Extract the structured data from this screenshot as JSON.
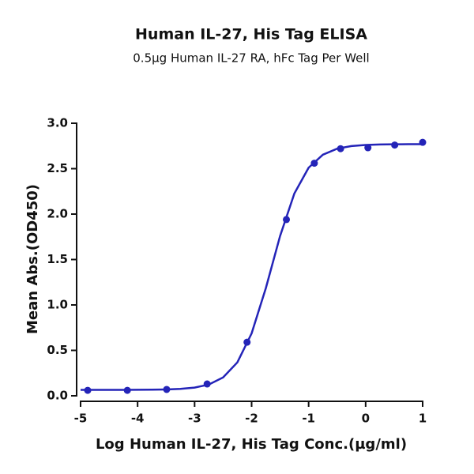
{
  "chart_data": {
    "type": "scatter",
    "title": "Human IL-27, His Tag ELISA",
    "subtitle": "0.5µg Human IL-27 RA, hFc Tag Per Well",
    "x_label": "Log Human IL-27, His Tag Conc.(µg/ml)",
    "y_label": "Mean Abs.(OD450)",
    "xlim": [
      -5,
      1
    ],
    "ylim": [
      0,
      3
    ],
    "xticks": [
      -5,
      -4,
      -3,
      -2,
      -1,
      0,
      1
    ],
    "yticks": [
      {
        "value": 0,
        "label": "0.0"
      },
      {
        "value": 0.5,
        "label": "0.5"
      },
      {
        "value": 1,
        "label": "1.0"
      },
      {
        "value": 1.5,
        "label": "1.5"
      },
      {
        "value": 2,
        "label": "2.0"
      },
      {
        "value": 2.5,
        "label": "2.5"
      },
      {
        "value": 3,
        "label": "3.0"
      }
    ],
    "color": "#2424b8",
    "x": [
      -4.875,
      -4.18,
      -3.49,
      -2.78,
      -2.08,
      -1.39,
      -0.9,
      -0.44,
      0.04,
      0.51,
      1.0
    ],
    "values": [
      0.06,
      0.06,
      0.07,
      0.13,
      0.59,
      1.94,
      2.56,
      2.72,
      2.73,
      2.76,
      2.79
    ],
    "fit": {
      "x": [
        -5,
        -4.75,
        -4.5,
        -4.25,
        -4,
        -3.75,
        -3.5,
        -3.25,
        -3,
        -2.75,
        -2.5,
        -2.25,
        -2,
        -1.75,
        -1.5,
        -1.25,
        -1,
        -0.75,
        -0.5,
        -0.25,
        0,
        0.25,
        0.5,
        0.75,
        1
      ],
      "values": [
        0.065,
        0.065,
        0.065,
        0.065,
        0.066,
        0.067,
        0.07,
        0.076,
        0.09,
        0.124,
        0.202,
        0.368,
        0.687,
        1.186,
        1.76,
        2.227,
        2.511,
        2.654,
        2.72,
        2.749,
        2.761,
        2.766,
        2.768,
        2.769,
        2.77
      ]
    }
  }
}
